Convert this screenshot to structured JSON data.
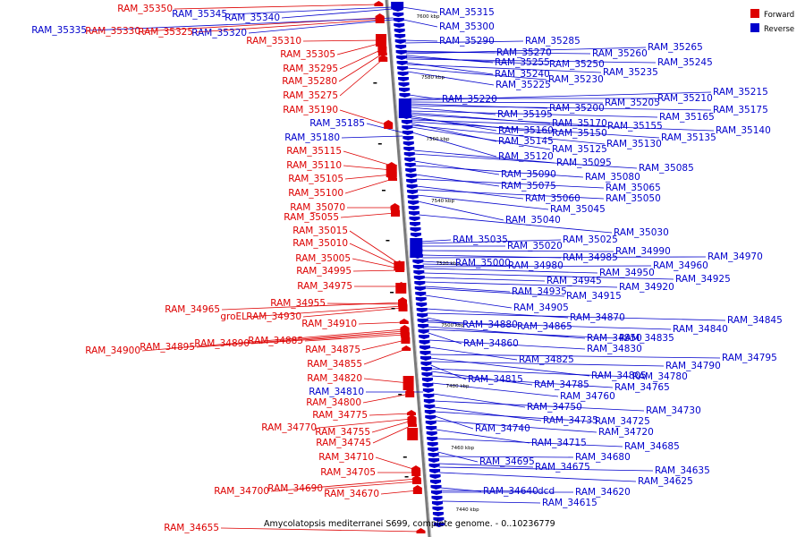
{
  "title": "Amycolatopsis mediterranei S699, complete genome. - 0..10236779",
  "legend": {
    "forward": "Forward",
    "reverse": "Reverse"
  },
  "colors": {
    "forward": "#dd0000",
    "reverse": "#0000cc",
    "backbone": "#7a7a7a"
  },
  "ticks": [
    "7600 kbp",
    "7580 kbp",
    "7560 kbp",
    "7540 kbp",
    "7520 kbp",
    "7500 kbp",
    "7480 kbp",
    "7460 kbp",
    "7440 kbp"
  ],
  "forward_labels": [
    "RAM_35350",
    "RAM_35330",
    "RAM_35325",
    "RAM_35310",
    "RAM_35305",
    "RAM_35295",
    "RAM_35280",
    "RAM_35275",
    "RAM_35190",
    "RAM_35115",
    "RAM_35110",
    "RAM_35105",
    "RAM_35100",
    "RAM_35070",
    "RAM_35055",
    "RAM_35015",
    "RAM_35010",
    "RAM_35005",
    "RAM_34995",
    "RAM_34975",
    "RAM_34965",
    "RAM_34955",
    "groEL",
    "RAM_34930",
    "RAM_34910",
    "RAM_34900",
    "RAM_34895",
    "RAM_34890",
    "RAM_34885",
    "RAM_34875",
    "RAM_34855",
    "RAM_34820",
    "RAM_34800",
    "RAM_34775",
    "RAM_34770",
    "RAM_34755",
    "RAM_34745",
    "RAM_34710",
    "RAM_34705",
    "RAM_34700",
    "RAM_34690",
    "RAM_34670",
    "RAM_34655"
  ],
  "reverse_left_labels": [
    "RAM_35345",
    "RAM_35340",
    "RAM_35335",
    "RAM_35320",
    "RAM_35185",
    "RAM_35180",
    "RAM_34810"
  ],
  "reverse_labels": [
    "RAM_35315",
    "RAM_35300",
    "RAM_35290",
    "RAM_35285",
    "RAM_35270",
    "RAM_35260",
    "RAM_35265",
    "RAM_35255",
    "RAM_35250",
    "RAM_35245",
    "RAM_35240",
    "RAM_35235",
    "RAM_35230",
    "RAM_35225",
    "RAM_35220",
    "RAM_35210",
    "RAM_35215",
    "RAM_35205",
    "RAM_35200",
    "RAM_35175",
    "RAM_35195",
    "RAM_35165",
    "RAM_35170",
    "RAM_35155",
    "RAM_35160",
    "RAM_35150",
    "RAM_35140",
    "RAM_35135",
    "RAM_35145",
    "RAM_35130",
    "RAM_35125",
    "RAM_35120",
    "RAM_35095",
    "RAM_35085",
    "RAM_35090",
    "RAM_35080",
    "RAM_35075",
    "RAM_35065",
    "RAM_35060",
    "RAM_35050",
    "RAM_35045",
    "RAM_35040",
    "RAM_35030",
    "RAM_35035",
    "RAM_35025",
    "RAM_35020",
    "RAM_34990",
    "RAM_34985",
    "RAM_34970",
    "RAM_35000",
    "RAM_34980",
    "RAM_34960",
    "RAM_34950",
    "RAM_34925",
    "RAM_34945",
    "RAM_34920",
    "RAM_34935",
    "RAM_34915",
    "RAM_34905",
    "RAM_34870",
    "RAM_34845",
    "RAM_34880",
    "RAM_34865",
    "RAM_34840",
    "RAM_34850",
    "RAM_34835",
    "RAM_34860",
    "RAM_34830",
    "RAM_34825",
    "RAM_34795",
    "RAM_34805",
    "RAM_34790",
    "RAM_34815",
    "RAM_34780",
    "RAM_34785",
    "RAM_34765",
    "RAM_34760",
    "RAM_34750",
    "RAM_34730",
    "RAM_34735",
    "RAM_34725",
    "RAM_34740",
    "RAM_34720",
    "RAM_34715",
    "RAM_34685",
    "RAM_34695",
    "RAM_34680",
    "RAM_34675",
    "RAM_34635",
    "RAM_34625",
    "RAM_34640",
    "dcd",
    "RAM_34620",
    "RAM_34615"
  ]
}
